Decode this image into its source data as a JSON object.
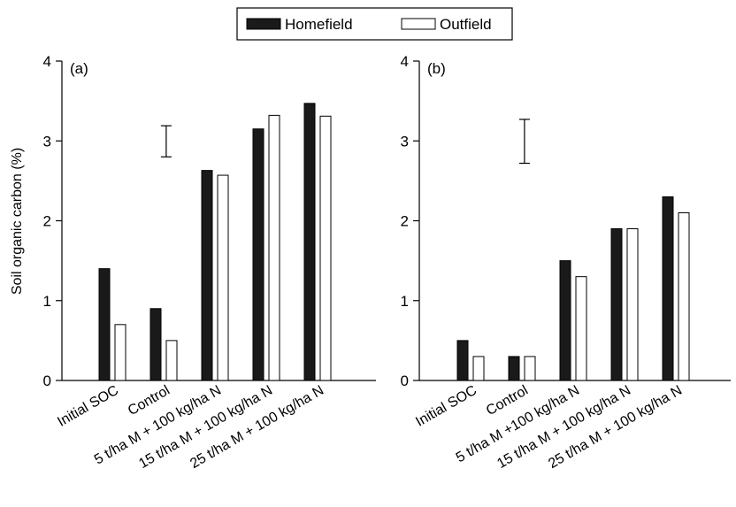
{
  "legend": {
    "placement": "top-center",
    "entries": [
      {
        "label": "Homefield",
        "color": "#1a1a1a"
      },
      {
        "label": "Outfield",
        "color": "#ffffff"
      }
    ]
  },
  "ylabel": "Soil organic carbon (%)",
  "chart_data": [
    {
      "type": "bar",
      "panel_label": "(a)",
      "categories": [
        "Initial SOC",
        "Control",
        "5 t/ha M + 100 kg/ha N",
        "15 t/ha M + 100 kg/ha N",
        "25 t/ha M + 100 kg/ha N"
      ],
      "series": [
        {
          "name": "Homefield",
          "values": [
            1.4,
            0.9,
            2.63,
            3.15,
            3.47
          ]
        },
        {
          "name": "Outfield",
          "values": [
            0.7,
            0.5,
            2.57,
            3.32,
            3.31
          ]
        }
      ],
      "ylim": [
        0,
        4
      ],
      "yticks": [
        "0",
        "1",
        "2",
        "3",
        "4"
      ],
      "error_bar": {
        "low": 2.8,
        "high": 3.19
      },
      "ylabel": "Soil organic carbon (%)",
      "grid": false
    },
    {
      "type": "bar",
      "panel_label": "(b)",
      "categories": [
        "Initial SOC",
        "Control",
        "5 t/ha M +100 kg/ha N",
        "15 t/ha M + 100 kg/ha N",
        "25 t/ha M + 100 kg/ha N"
      ],
      "series": [
        {
          "name": "Homefield",
          "values": [
            0.5,
            0.3,
            1.5,
            1.9,
            2.3
          ]
        },
        {
          "name": "Outfield",
          "values": [
            0.3,
            0.3,
            1.3,
            1.9,
            2.1
          ]
        }
      ],
      "ylim": [
        0,
        4
      ],
      "yticks": [
        "0",
        "1",
        "2",
        "3",
        "4"
      ],
      "error_bar": {
        "low": 2.72,
        "high": 3.27
      },
      "ylabel": "",
      "grid": false
    }
  ]
}
